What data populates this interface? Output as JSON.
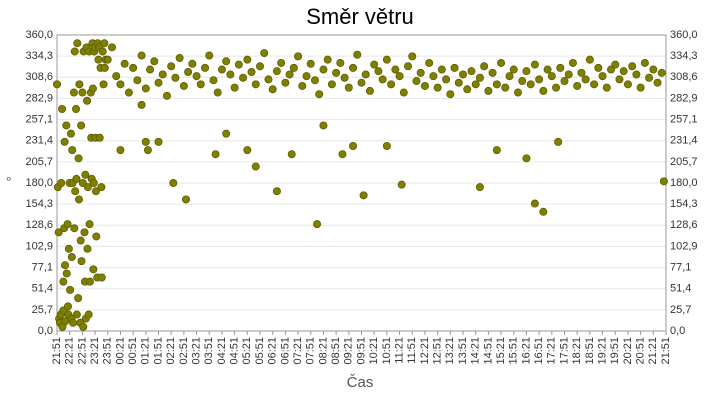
{
  "chart_data": {
    "type": "scatter",
    "title": "Směr větru",
    "x_label": "Čas",
    "y_label": "°",
    "color": "#808000",
    "grid": true,
    "xlim": [
      0,
      1440
    ],
    "ylim": [
      0,
      360
    ],
    "xticks": [
      {
        "value": 0,
        "label": "21:51"
      },
      {
        "value": 30,
        "label": "22:21"
      },
      {
        "value": 60,
        "label": "22:51"
      },
      {
        "value": 90,
        "label": "23:21"
      },
      {
        "value": 120,
        "label": "23:51"
      },
      {
        "value": 150,
        "label": "00:21"
      },
      {
        "value": 180,
        "label": "00:51"
      },
      {
        "value": 210,
        "label": "01:21"
      },
      {
        "value": 240,
        "label": "01:51"
      },
      {
        "value": 270,
        "label": "02:21"
      },
      {
        "value": 300,
        "label": "02:51"
      },
      {
        "value": 330,
        "label": "03:21"
      },
      {
        "value": 360,
        "label": "03:51"
      },
      {
        "value": 390,
        "label": "04:21"
      },
      {
        "value": 420,
        "label": "04:51"
      },
      {
        "value": 450,
        "label": "05:21"
      },
      {
        "value": 480,
        "label": "05:51"
      },
      {
        "value": 510,
        "label": "06:21"
      },
      {
        "value": 540,
        "label": "06:51"
      },
      {
        "value": 570,
        "label": "07:21"
      },
      {
        "value": 600,
        "label": "07:51"
      },
      {
        "value": 630,
        "label": "08:21"
      },
      {
        "value": 660,
        "label": "08:51"
      },
      {
        "value": 690,
        "label": "09:21"
      },
      {
        "value": 720,
        "label": "09:51"
      },
      {
        "value": 750,
        "label": "10:21"
      },
      {
        "value": 780,
        "label": "10:51"
      },
      {
        "value": 810,
        "label": "11:21"
      },
      {
        "value": 840,
        "label": "11:51"
      },
      {
        "value": 870,
        "label": "12:21"
      },
      {
        "value": 900,
        "label": "12:51"
      },
      {
        "value": 930,
        "label": "13:21"
      },
      {
        "value": 960,
        "label": "13:51"
      },
      {
        "value": 990,
        "label": "14:21"
      },
      {
        "value": 1020,
        "label": "14:51"
      },
      {
        "value": 1050,
        "label": "15:21"
      },
      {
        "value": 1080,
        "label": "15:51"
      },
      {
        "value": 1110,
        "label": "16:21"
      },
      {
        "value": 1140,
        "label": "16:51"
      },
      {
        "value": 1170,
        "label": "17:21"
      },
      {
        "value": 1200,
        "label": "17:51"
      },
      {
        "value": 1230,
        "label": "18:21"
      },
      {
        "value": 1260,
        "label": "18:51"
      },
      {
        "value": 1290,
        "label": "19:21"
      },
      {
        "value": 1320,
        "label": "19:51"
      },
      {
        "value": 1350,
        "label": "20:21"
      },
      {
        "value": 1380,
        "label": "20:51"
      },
      {
        "value": 1410,
        "label": "21:21"
      },
      {
        "value": 1440,
        "label": "21:51"
      }
    ],
    "yticks": [
      {
        "value": 0,
        "label": "0,0"
      },
      {
        "value": 25.7,
        "label": "25,7"
      },
      {
        "value": 51.4,
        "label": "51,4"
      },
      {
        "value": 77.1,
        "label": "77,1"
      },
      {
        "value": 102.9,
        "label": "102,9"
      },
      {
        "value": 128.6,
        "label": "128,6"
      },
      {
        "value": 154.3,
        "label": "154,3"
      },
      {
        "value": 180,
        "label": "180,0"
      },
      {
        "value": 205.7,
        "label": "205,7"
      },
      {
        "value": 231.4,
        "label": "231,4"
      },
      {
        "value": 257.1,
        "label": "257,1"
      },
      {
        "value": 282.9,
        "label": "282,9"
      },
      {
        "value": 308.6,
        "label": "308,6"
      },
      {
        "value": 334.3,
        "label": "334,3"
      },
      {
        "value": 360,
        "label": "360,0"
      }
    ],
    "x": [
      0,
      2,
      4,
      5,
      7,
      9,
      10,
      12,
      13,
      15,
      15,
      17,
      18,
      19,
      20,
      22,
      23,
      25,
      26,
      27,
      28,
      30,
      31,
      33,
      34,
      35,
      36,
      37,
      38,
      40,
      41,
      42,
      43,
      45,
      46,
      47,
      48,
      50,
      51,
      52,
      53,
      55,
      56,
      57,
      58,
      60,
      61,
      62,
      63,
      65,
      66,
      67,
      68,
      70,
      71,
      72,
      73,
      75,
      76,
      77,
      78,
      80,
      81,
      82,
      84,
      85,
      86,
      87,
      88,
      90,
      91,
      92,
      93,
      95,
      96,
      98,
      100,
      101,
      103,
      105,
      106,
      108,
      110,
      112,
      113,
      115,
      120,
      130,
      140,
      150,
      160,
      170,
      180,
      190,
      200,
      210,
      220,
      230,
      240,
      250,
      260,
      270,
      280,
      290,
      300,
      310,
      320,
      330,
      340,
      350,
      360,
      370,
      380,
      390,
      400,
      410,
      420,
      430,
      440,
      450,
      460,
      470,
      480,
      490,
      500,
      510,
      520,
      530,
      540,
      550,
      560,
      570,
      580,
      590,
      600,
      610,
      620,
      630,
      640,
      650,
      660,
      670,
      680,
      690,
      700,
      710,
      720,
      730,
      740,
      750,
      760,
      770,
      780,
      790,
      800,
      810,
      820,
      830,
      840,
      850,
      860,
      870,
      880,
      890,
      900,
      910,
      920,
      930,
      940,
      950,
      960,
      970,
      980,
      990,
      1000,
      1010,
      1020,
      1030,
      1040,
      1050,
      1060,
      1070,
      1080,
      1090,
      1100,
      1110,
      1120,
      1130,
      1140,
      1150,
      1160,
      1170,
      1180,
      1190,
      1200,
      1210,
      1220,
      1230,
      1240,
      1250,
      1260,
      1270,
      1280,
      1290,
      1300,
      1310,
      1320,
      1330,
      1340,
      1350,
      1360,
      1370,
      1380,
      1390,
      1400,
      1410,
      1420,
      1430,
      150,
      200,
      210,
      215,
      240,
      275,
      305,
      375,
      400,
      450,
      470,
      520,
      555,
      615,
      630,
      675,
      700,
      725,
      780,
      815,
      1000,
      1040,
      1110,
      1130,
      1150,
      1185,
      1435
    ],
    "values": [
      300,
      175,
      120,
      15,
      10,
      20,
      180,
      270,
      5,
      60,
      25,
      125,
      230,
      80,
      12,
      250,
      70,
      130,
      30,
      20,
      100,
      180,
      50,
      240,
      15,
      90,
      220,
      180,
      10,
      290,
      125,
      340,
      170,
      270,
      185,
      20,
      350,
      40,
      210,
      160,
      300,
      10,
      110,
      250,
      85,
      290,
      180,
      5,
      340,
      120,
      60,
      190,
      15,
      345,
      280,
      100,
      175,
      20,
      340,
      130,
      60,
      290,
      235,
      185,
      350,
      295,
      75,
      180,
      340,
      345,
      235,
      170,
      115,
      65,
      350,
      330,
      345,
      235,
      320,
      175,
      65,
      340,
      300,
      350,
      320,
      330,
      330,
      345,
      310,
      300,
      325,
      290,
      320,
      305,
      335,
      295,
      318,
      328,
      302,
      312,
      286,
      322,
      308,
      332,
      298,
      315,
      325,
      310,
      300,
      320,
      335,
      305,
      290,
      318,
      328,
      312,
      296,
      324,
      308,
      330,
      315,
      300,
      322,
      338,
      306,
      294,
      316,
      326,
      302,
      312,
      320,
      334,
      298,
      310,
      325,
      305,
      288,
      318,
      330,
      300,
      314,
      326,
      308,
      296,
      320,
      336,
      302,
      312,
      292,
      324,
      316,
      306,
      330,
      300,
      318,
      310,
      290,
      322,
      334,
      304,
      314,
      298,
      326,
      310,
      296,
      318,
      306,
      288,
      320,
      302,
      312,
      294,
      316,
      300,
      308,
      322,
      292,
      314,
      300,
      326,
      296,
      310,
      318,
      290,
      304,
      316,
      300,
      324,
      306,
      292,
      318,
      310,
      296,
      320,
      304,
      312,
      326,
      298,
      314,
      306,
      330,
      300,
      320,
      310,
      296,
      318,
      324,
      306,
      316,
      300,
      322,
      312,
      296,
      326,
      308,
      318,
      302,
      314,
      220,
      275,
      230,
      220,
      230,
      180,
      160,
      215,
      240,
      220,
      200,
      170,
      215,
      130,
      250,
      215,
      225,
      165,
      225,
      178,
      175,
      220,
      210,
      155,
      145,
      230,
      182
    ]
  }
}
